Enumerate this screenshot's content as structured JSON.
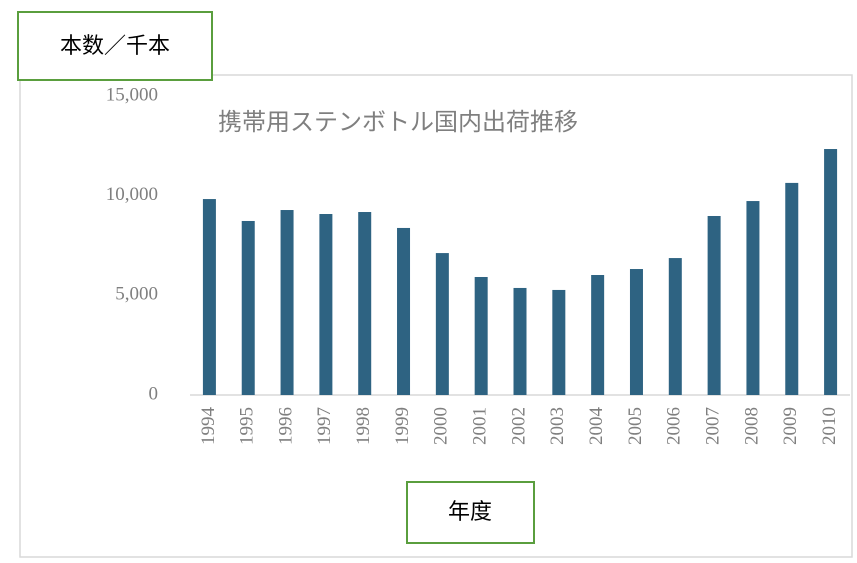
{
  "chart_data": {
    "type": "bar",
    "title": "携帯用ステンボトル国内出荷推移",
    "y_label": "本数／千本",
    "x_label": "年度",
    "categories": [
      "1994",
      "1995",
      "1996",
      "1997",
      "1998",
      "1999",
      "2000",
      "2001",
      "2002",
      "2003",
      "2004",
      "2005",
      "2006",
      "2007",
      "2008",
      "2009",
      "2010"
    ],
    "values": [
      9830,
      8730,
      9280,
      9080,
      9180,
      8380,
      7120,
      5920,
      5370,
      5270,
      6020,
      6320,
      6870,
      8980,
      9730,
      10640,
      12340
    ],
    "color": "#2e6382",
    "ylim": [
      0,
      15000
    ],
    "yticks": [
      0,
      {
        "value": 5000,
        "label": "5,000"
      },
      {
        "value": 10000,
        "label": "10,000"
      },
      {
        "value": 15000,
        "label": "15,000"
      }
    ],
    "grid": false
  }
}
